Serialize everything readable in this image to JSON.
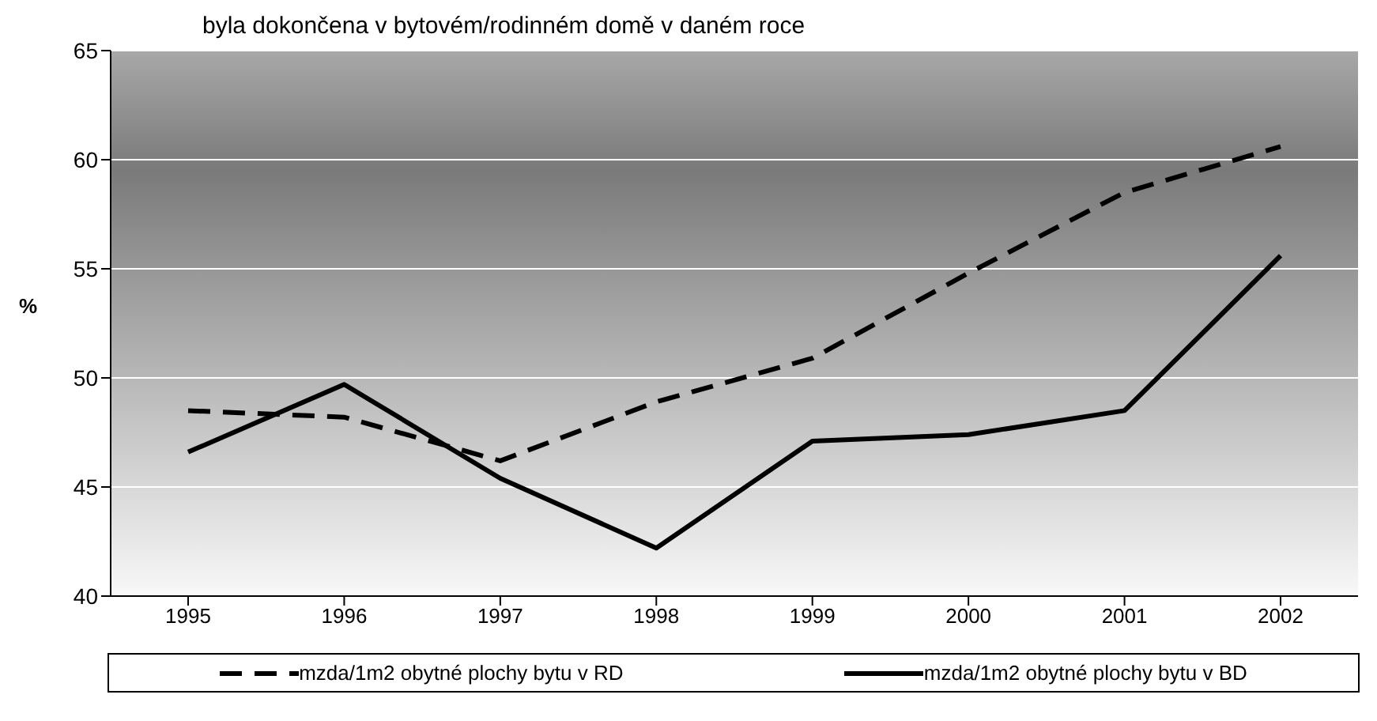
{
  "chart_data": {
    "type": "line",
    "title": "byla dokončena v bytovém/rodinném domě v daném roce",
    "ylabel": "%",
    "categories": [
      "1995",
      "1996",
      "1997",
      "1998",
      "1999",
      "2000",
      "2001",
      "2002"
    ],
    "series": [
      {
        "name": "mzda/1m2 obytné plochy bytu v RD",
        "color": "#000000",
        "line_style": "dashed",
        "values": [
          48.5,
          48.2,
          46.2,
          48.9,
          50.9,
          54.8,
          58.5,
          60.6
        ]
      },
      {
        "name": "mzda/1m2 obytné plochy bytu v BD",
        "color": "#000000",
        "line_style": "solid",
        "values": [
          46.6,
          49.7,
          45.4,
          42.2,
          47.1,
          47.4,
          48.5,
          55.6
        ]
      }
    ],
    "ylim": [
      40,
      65
    ],
    "yticks": [
      40,
      45,
      50,
      55,
      60,
      65
    ],
    "grid": "y",
    "legend": "bottom",
    "marker": "none"
  }
}
